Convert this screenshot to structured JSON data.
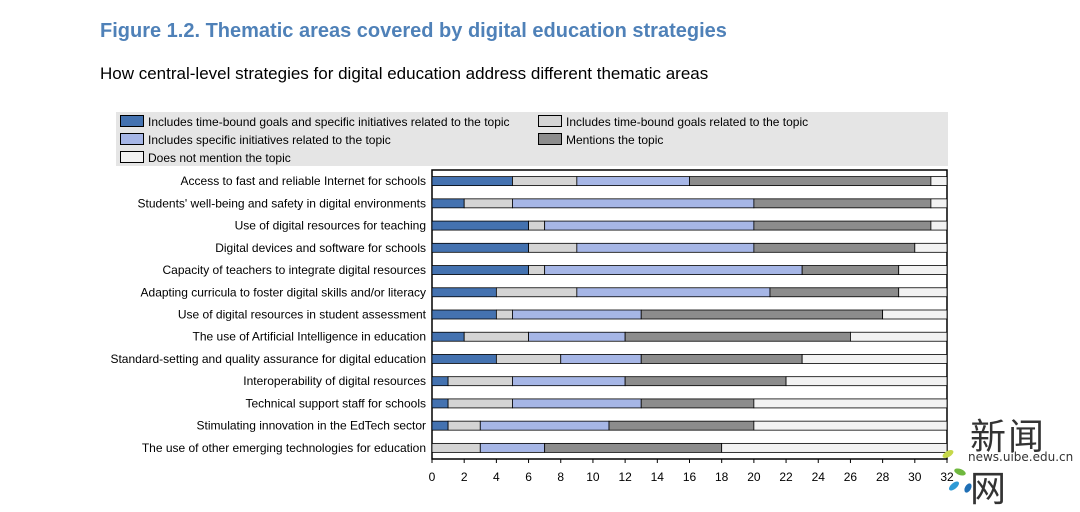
{
  "header": {
    "title": "Figure 1.2. Thematic areas covered by digital education strategies",
    "subtitle": "How central-level strategies for digital education address different thematic areas"
  },
  "legend": [
    {
      "label": "Includes time-bound goals and specific initiatives related to the topic",
      "color": "#4472b0"
    },
    {
      "label": "Includes time-bound goals related to the topic",
      "color": "#d4d4d4"
    },
    {
      "label": "Includes specific initiatives related to the topic",
      "color": "#a6b6e6"
    },
    {
      "label": "Mentions the topic",
      "color": "#8c8c8c"
    },
    {
      "label": "Does not mention the topic",
      "color": "#f2f2f2"
    }
  ],
  "chart_data": {
    "type": "bar",
    "orientation": "horizontal",
    "stacked": true,
    "title": "Thematic areas covered by digital education strategies",
    "xlabel": "",
    "ylabel": "",
    "xlim": [
      0,
      32
    ],
    "xticks": [
      0,
      2,
      4,
      6,
      8,
      10,
      12,
      14,
      16,
      18,
      20,
      22,
      24,
      26,
      28,
      30,
      32
    ],
    "categories": [
      "Access to fast and reliable Internet for schools",
      "Students' well-being and safety in digital environments",
      "Use of digital resources for teaching",
      "Digital devices and software for schools",
      "Capacity of teachers to integrate digital resources",
      "Adapting curricula to foster digital skills and/or literacy",
      "Use of digital resources in student assessment",
      "The use of Artificial Intelligence in education",
      "Standard-setting and quality assurance for digital education",
      "Interoperability of digital resources",
      "Technical support staff for schools",
      "Stimulating innovation in the EdTech sector",
      "The use of other emerging technologies for education"
    ],
    "series": [
      {
        "name": "Includes time-bound goals and specific initiatives related to the topic",
        "color": "#4472b0",
        "values": [
          5,
          2,
          6,
          6,
          6,
          4,
          4,
          2,
          4,
          1,
          1,
          1,
          0
        ]
      },
      {
        "name": "Includes time-bound goals related to the topic",
        "color": "#d4d4d4",
        "values": [
          4,
          3,
          1,
          3,
          1,
          5,
          1,
          4,
          4,
          4,
          4,
          2,
          3
        ]
      },
      {
        "name": "Includes specific initiatives related to the topic",
        "color": "#a6b6e6",
        "values": [
          7,
          15,
          13,
          11,
          16,
          12,
          8,
          6,
          5,
          7,
          8,
          8,
          4
        ]
      },
      {
        "name": "Mentions the topic",
        "color": "#8c8c8c",
        "values": [
          15,
          11,
          11,
          10,
          6,
          8,
          15,
          14,
          10,
          10,
          7,
          9,
          11
        ]
      },
      {
        "name": "Does not mention the topic",
        "color": "#f2f2f2",
        "values": [
          1,
          1,
          1,
          2,
          3,
          3,
          4,
          6,
          9,
          10,
          12,
          12,
          14
        ]
      }
    ]
  },
  "watermark": {
    "cn": "新闻网",
    "url": "news.uibe.edu.cn"
  }
}
